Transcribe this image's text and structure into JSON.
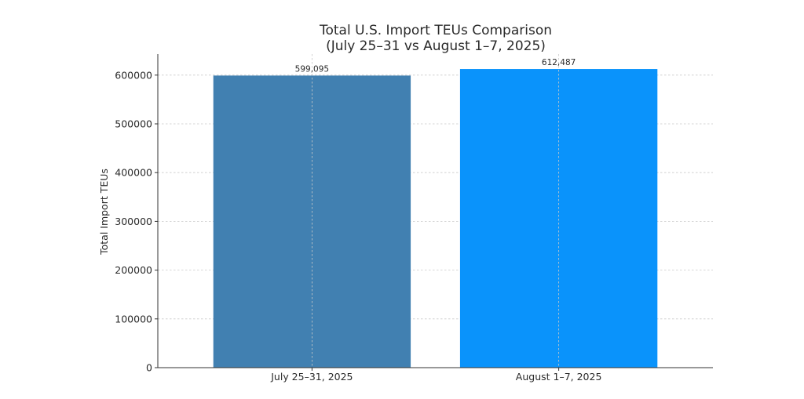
{
  "chart_data": {
    "type": "bar",
    "title_lines": [
      "Total U.S. Import TEUs Comparison",
      "(July 25–31 vs August 1–7, 2025)"
    ],
    "xlabel": "",
    "ylabel": "Total Import TEUs",
    "categories": [
      "July 25–31, 2025",
      "August 1–7, 2025"
    ],
    "values": [
      599095,
      612487
    ],
    "value_labels": [
      "599,095",
      "612,487"
    ],
    "bar_colors": [
      "#4180b1",
      "#0a93fb"
    ],
    "ylim": [
      0,
      643111
    ],
    "yticks": [
      0,
      100000,
      200000,
      300000,
      400000,
      500000,
      600000
    ],
    "ytick_labels": [
      "0",
      "100000",
      "200000",
      "300000",
      "400000",
      "500000",
      "600000"
    ],
    "grid": true
  }
}
